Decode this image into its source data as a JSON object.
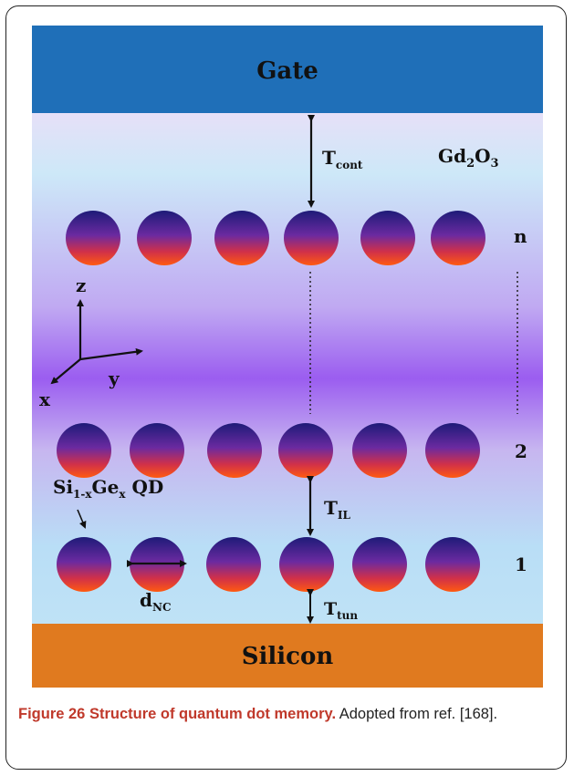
{
  "diagram": {
    "gate_label": "Gate",
    "silicon_label": "Silicon",
    "oxide_label": {
      "base": "Gd",
      "sub1": "2",
      "mid": "O",
      "sub2": "3"
    },
    "t_cont": {
      "base": "T",
      "sub": "cont"
    },
    "t_il": {
      "base": "T",
      "sub": "IL"
    },
    "t_tun": {
      "base": "T",
      "sub": "tun"
    },
    "d_nc": {
      "base": "d",
      "sub": "NC"
    },
    "qd_label": {
      "p1": "Si",
      "s1": "1-x",
      "p2": "Ge",
      "s2": "x",
      "p3": " QD"
    },
    "layer_labels": {
      "top": "n",
      "middle": "2",
      "bottom": "1"
    },
    "axes": {
      "z": "z",
      "y": "y",
      "x": "x"
    },
    "colors": {
      "gate": "#1f6fb8",
      "silicon": "#e07a1f",
      "dot_top": "#1e1b78",
      "dot_bottom": "#ff4a10",
      "oxide_edge": "#c9e6f7",
      "oxide_center": "#9a5cf0"
    },
    "rows": [
      {
        "name": "n",
        "dots": 6
      },
      {
        "name": "2",
        "dots": 6
      },
      {
        "name": "1",
        "dots": 6
      }
    ]
  },
  "caption": {
    "title": "Figure 26 Structure of quantum dot memory.",
    "text": " Adopted from ref. [168]."
  }
}
